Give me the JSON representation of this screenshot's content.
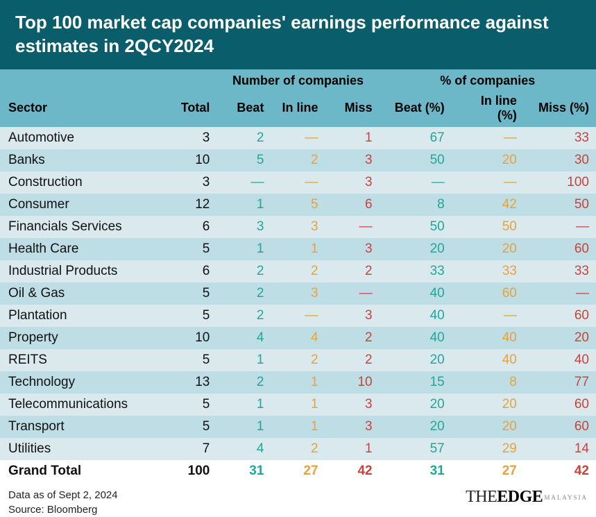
{
  "table": {
    "type": "table",
    "title": "Top 100 market cap companies' earnings performance against estimates in 2QCY2024",
    "group_headers": {
      "num": "Number of companies",
      "pct": "% of companies"
    },
    "columns": {
      "sector": "Sector",
      "total": "Total",
      "beat": "Beat",
      "inline": "In line",
      "miss": "Miss",
      "beat_pct": "Beat (%)",
      "inline_pct": "In line (%)",
      "miss_pct": "Miss (%)"
    },
    "dash": "—",
    "colors": {
      "title_bg": "#0a5d6b",
      "title_fg": "#ffffff",
      "header_bg": "#6db8c8",
      "row_odd_bg": "#d9e9ed",
      "row_even_bg": "#bfdde4",
      "text": "#111111",
      "beat": "#1fa79a",
      "inline": "#e8a23d",
      "miss": "#c9423b",
      "total_row_bg": "#ffffff"
    },
    "font_sizes": {
      "title": 26,
      "header": 18,
      "body": 19,
      "footer": 15
    },
    "rows": [
      {
        "sector": "Automotive",
        "total": 3,
        "beat": 2,
        "inline": null,
        "miss": 1,
        "beat_pct": 67,
        "inline_pct": null,
        "miss_pct": 33
      },
      {
        "sector": "Banks",
        "total": 10,
        "beat": 5,
        "inline": 2,
        "miss": 3,
        "beat_pct": 50,
        "inline_pct": 20,
        "miss_pct": 30
      },
      {
        "sector": "Construction",
        "total": 3,
        "beat": null,
        "inline": null,
        "miss": 3,
        "beat_pct": null,
        "inline_pct": null,
        "miss_pct": 100
      },
      {
        "sector": "Consumer",
        "total": 12,
        "beat": 1,
        "inline": 5,
        "miss": 6,
        "beat_pct": 8,
        "inline_pct": 42,
        "miss_pct": 50
      },
      {
        "sector": "Financials Services",
        "total": 6,
        "beat": 3,
        "inline": 3,
        "miss": null,
        "beat_pct": 50,
        "inline_pct": 50,
        "miss_pct": null
      },
      {
        "sector": "Health Care",
        "total": 5,
        "beat": 1,
        "inline": 1,
        "miss": 3,
        "beat_pct": 20,
        "inline_pct": 20,
        "miss_pct": 60
      },
      {
        "sector": "Industrial Products",
        "total": 6,
        "beat": 2,
        "inline": 2,
        "miss": 2,
        "beat_pct": 33,
        "inline_pct": 33,
        "miss_pct": 33
      },
      {
        "sector": "Oil & Gas",
        "total": 5,
        "beat": 2,
        "inline": 3,
        "miss": null,
        "beat_pct": 40,
        "inline_pct": 60,
        "miss_pct": null
      },
      {
        "sector": "Plantation",
        "total": 5,
        "beat": 2,
        "inline": null,
        "miss": 3,
        "beat_pct": 40,
        "inline_pct": null,
        "miss_pct": 60
      },
      {
        "sector": "Property",
        "total": 10,
        "beat": 4,
        "inline": 4,
        "miss": 2,
        "beat_pct": 40,
        "inline_pct": 40,
        "miss_pct": 20
      },
      {
        "sector": "REITS",
        "total": 5,
        "beat": 1,
        "inline": 2,
        "miss": 2,
        "beat_pct": 20,
        "inline_pct": 40,
        "miss_pct": 40
      },
      {
        "sector": "Technology",
        "total": 13,
        "beat": 2,
        "inline": 1,
        "miss": 10,
        "beat_pct": 15,
        "inline_pct": 8,
        "miss_pct": 77
      },
      {
        "sector": "Telecommunications",
        "total": 5,
        "beat": 1,
        "inline": 1,
        "miss": 3,
        "beat_pct": 20,
        "inline_pct": 20,
        "miss_pct": 60
      },
      {
        "sector": "Transport",
        "total": 5,
        "beat": 1,
        "inline": 1,
        "miss": 3,
        "beat_pct": 20,
        "inline_pct": 20,
        "miss_pct": 60
      },
      {
        "sector": "Utilities",
        "total": 7,
        "beat": 4,
        "inline": 2,
        "miss": 1,
        "beat_pct": 57,
        "inline_pct": 29,
        "miss_pct": 14
      }
    ],
    "total_row": {
      "label": "Grand Total",
      "total": 100,
      "beat": 31,
      "inline": 27,
      "miss": 42,
      "beat_pct": 31,
      "inline_pct": 27,
      "miss_pct": 42
    }
  },
  "footer": {
    "date_line": "Data as of Sept 2, 2024",
    "source_line": "Source: Bloomberg",
    "logo_thin": "THE",
    "logo_bold": "EDGE",
    "logo_sub": "MALAYSIA"
  }
}
